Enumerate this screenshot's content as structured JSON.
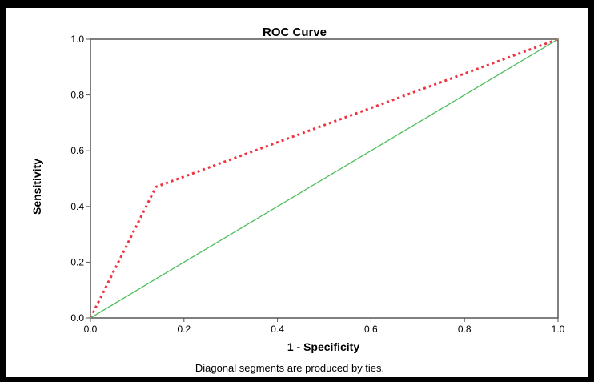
{
  "chart_data": {
    "type": "line",
    "title": "ROC Curve",
    "xlabel": "1 - Specificity",
    "ylabel": "Sensitivity",
    "xlim": [
      0.0,
      1.0
    ],
    "ylim": [
      0.0,
      1.0
    ],
    "x_ticks": [
      "0.0",
      "0.2",
      "0.4",
      "0.6",
      "0.8",
      "1.0"
    ],
    "y_ticks": [
      "0.0",
      "0.2",
      "0.4",
      "0.6",
      "0.8",
      "1.0"
    ],
    "grid": false,
    "legend": false,
    "footnote": "Diagonal segments are produced by ties.",
    "series": [
      {
        "color": "#ef3340",
        "style": "dotted",
        "x": [
          0.0,
          0.14,
          1.0
        ],
        "y": [
          0.0,
          0.47,
          1.0
        ]
      },
      {
        "color": "#4cbe5a",
        "style": "solid",
        "x": [
          0.0,
          1.0
        ],
        "y": [
          0.0,
          1.0
        ]
      }
    ]
  }
}
